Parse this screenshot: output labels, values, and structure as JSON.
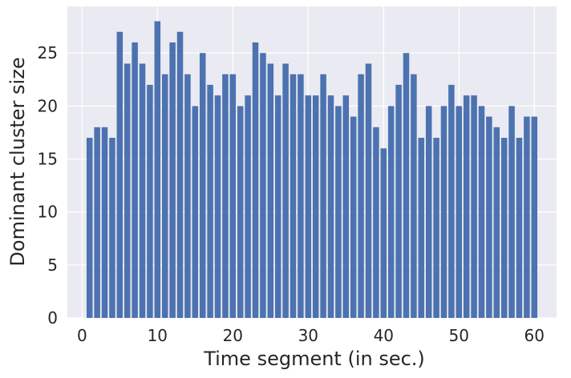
{
  "chart_data": {
    "type": "bar",
    "xlabel": "Time segment (in sec.)",
    "ylabel": "Dominant cluster size",
    "x": [
      1,
      2,
      3,
      4,
      5,
      6,
      7,
      8,
      9,
      10,
      11,
      12,
      13,
      14,
      15,
      16,
      17,
      18,
      19,
      20,
      21,
      22,
      23,
      24,
      25,
      26,
      27,
      28,
      29,
      30,
      31,
      32,
      33,
      34,
      35,
      36,
      37,
      38,
      39,
      40,
      41,
      42,
      43,
      44,
      45,
      46,
      47,
      48,
      49,
      50,
      51,
      52,
      53,
      54,
      55,
      56,
      57,
      58,
      59,
      60
    ],
    "values": [
      17,
      18,
      18,
      17,
      27,
      24,
      26,
      24,
      22,
      28,
      23,
      26,
      27,
      23,
      20,
      25,
      22,
      21,
      23,
      23,
      20,
      21,
      26,
      25,
      24,
      21,
      24,
      23,
      23,
      21,
      21,
      23,
      21,
      20,
      21,
      19,
      23,
      24,
      18,
      16,
      20,
      22,
      25,
      23,
      17,
      20,
      17,
      20,
      22,
      20,
      21,
      21,
      20,
      19,
      18,
      17,
      20,
      17,
      19,
      19
    ],
    "xlim": [
      -1.95,
      62.95
    ],
    "ylim": [
      0,
      29.4
    ],
    "xticks": [
      0,
      10,
      20,
      30,
      40,
      50,
      60
    ],
    "yticks": [
      0,
      5,
      10,
      15,
      20,
      25
    ],
    "grid": true,
    "bar_color": "#4c72b0",
    "background_color": "#eaeaf2",
    "grid_color": "#ffffff"
  }
}
